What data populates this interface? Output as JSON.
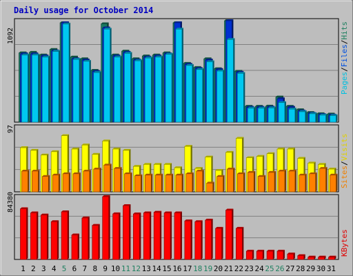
{
  "chart_data": [
    {
      "type": "bar",
      "panel": "top",
      "title": "Daily usage for October 2014",
      "ymax_label": "1092",
      "ylim": [
        0,
        1092
      ],
      "categories": [
        "1",
        "2",
        "3",
        "4",
        "5",
        "6",
        "7",
        "8",
        "9",
        "10",
        "11",
        "12",
        "13",
        "14",
        "15",
        "16",
        "17",
        "18",
        "19",
        "20",
        "21",
        "22",
        "23",
        "24",
        "25",
        "26",
        "27",
        "28",
        "29",
        "30",
        "31"
      ],
      "axis_labels": [
        {
          "text": "Pages",
          "color": "#00c0e0"
        },
        {
          "text": "/",
          "color": "#000000"
        },
        {
          "text": "Files",
          "color": "#0050e0"
        },
        {
          "text": "/",
          "color": "#000000"
        },
        {
          "text": "Hits",
          "color": "#208060"
        }
      ],
      "series": [
        {
          "name": "Hits",
          "color": "#1a7a60",
          "values": [
            746,
            751,
            722,
            782,
            1070,
            700,
            682,
            557,
            1059,
            722,
            764,
            682,
            712,
            722,
            746,
            1070,
            632,
            588,
            682,
            575,
            1092,
            547,
            170,
            170,
            172,
            270,
            170,
            133,
            103,
            90,
            86
          ]
        },
        {
          "name": "Files",
          "color": "#0030d0",
          "values": [
            735,
            735,
            712,
            767,
            1070,
            682,
            669,
            546,
            1014,
            712,
            751,
            669,
            700,
            712,
            735,
            1070,
            622,
            578,
            669,
            566,
            1092,
            537,
            160,
            160,
            162,
            252,
            160,
            120,
            95,
            81,
            75
          ]
        },
        {
          "name": "Pages",
          "color": "#00c8f0",
          "values": [
            722,
            722,
            700,
            761,
            1056,
            675,
            655,
            534,
            1001,
            700,
            740,
            660,
            690,
            700,
            730,
            1001,
            610,
            566,
            650,
            550,
            890,
            525,
            150,
            150,
            153,
            210,
            140,
            112,
            90,
            75,
            70
          ]
        }
      ]
    },
    {
      "type": "bar",
      "panel": "middle",
      "ymax_label": "97",
      "ylim": [
        0,
        97
      ],
      "axis_labels": [
        {
          "text": "Sites",
          "color": "#f08000"
        },
        {
          "text": "/",
          "color": "#000000"
        },
        {
          "text": "Visits",
          "color": "#e0d000"
        }
      ],
      "series": [
        {
          "name": "Visits",
          "color": "#ffff00",
          "values": [
            66,
            62,
            55,
            60,
            84,
            64,
            70,
            56,
            76,
            64,
            62,
            38,
            41,
            41,
            41,
            36,
            68,
            35,
            52,
            32,
            59,
            80,
            51,
            53,
            57,
            64,
            64,
            50,
            43,
            41,
            34
          ]
        },
        {
          "name": "Sites",
          "color": "#ff8000",
          "values": [
            31,
            31,
            23,
            25,
            27,
            27,
            31,
            34,
            40,
            35,
            27,
            24,
            25,
            25,
            25,
            25,
            27,
            31,
            13,
            23,
            34,
            27,
            29,
            23,
            29,
            31,
            31,
            25,
            27,
            35,
            25
          ]
        }
      ]
    },
    {
      "type": "bar",
      "panel": "bottom",
      "ymax_label": "84380",
      "ylim": [
        0,
        84380
      ],
      "axis_labels": [
        {
          "text": "KBytes",
          "color": "#e00000"
        }
      ],
      "series": [
        {
          "name": "KBytes",
          "color": "#ff0000",
          "values": [
            68100,
            62600,
            59700,
            50800,
            64000,
            32900,
            55700,
            45800,
            84380,
            61300,
            72300,
            61200,
            62600,
            63400,
            62600,
            62600,
            51800,
            50800,
            52800,
            41800,
            66300,
            41800,
            11100,
            11100,
            11100,
            11100,
            7300,
            5100,
            3100,
            3100,
            3100
          ]
        }
      ]
    }
  ],
  "x_labels": [
    {
      "text": "1",
      "color": "#000000"
    },
    {
      "text": "2",
      "color": "#000000"
    },
    {
      "text": "3",
      "color": "#000000"
    },
    {
      "text": "4",
      "color": "#000000"
    },
    {
      "text": "5",
      "color": "#208060"
    },
    {
      "text": "6",
      "color": "#000000"
    },
    {
      "text": "7",
      "color": "#000000"
    },
    {
      "text": "8",
      "color": "#000000"
    },
    {
      "text": "9",
      "color": "#000000"
    },
    {
      "text": "10",
      "color": "#000000"
    },
    {
      "text": "11",
      "color": "#208060"
    },
    {
      "text": "12",
      "color": "#208060"
    },
    {
      "text": "13",
      "color": "#000000"
    },
    {
      "text": "14",
      "color": "#000000"
    },
    {
      "text": "15",
      "color": "#000000"
    },
    {
      "text": "16",
      "color": "#000000"
    },
    {
      "text": "17",
      "color": "#000000"
    },
    {
      "text": "18",
      "color": "#208060"
    },
    {
      "text": "19",
      "color": "#208060"
    },
    {
      "text": "20",
      "color": "#000000"
    },
    {
      "text": "21",
      "color": "#000000"
    },
    {
      "text": "22",
      "color": "#000000"
    },
    {
      "text": "23",
      "color": "#000000"
    },
    {
      "text": "24",
      "color": "#000000"
    },
    {
      "text": "25",
      "color": "#208060"
    },
    {
      "text": "26",
      "color": "#208060"
    },
    {
      "text": "27",
      "color": "#000000"
    },
    {
      "text": "28",
      "color": "#000000"
    },
    {
      "text": "29",
      "color": "#000000"
    },
    {
      "text": "30",
      "color": "#000000"
    },
    {
      "text": "31",
      "color": "#000000"
    }
  ],
  "colors": {
    "background": "#c0c0c0",
    "plot_background": "#bdbdbd",
    "title": "#0000c0",
    "grid": "#808080"
  }
}
